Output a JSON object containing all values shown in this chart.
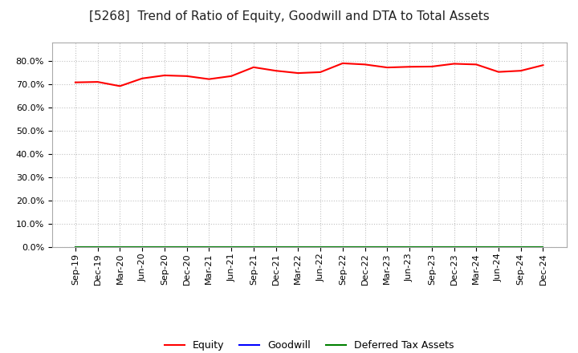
{
  "title": "[5268]  Trend of Ratio of Equity, Goodwill and DTA to Total Assets",
  "x_labels": [
    "Sep-19",
    "Dec-19",
    "Mar-20",
    "Jun-20",
    "Sep-20",
    "Dec-20",
    "Mar-21",
    "Jun-21",
    "Sep-21",
    "Dec-21",
    "Mar-22",
    "Jun-22",
    "Sep-22",
    "Dec-22",
    "Mar-23",
    "Jun-23",
    "Sep-23",
    "Dec-23",
    "Mar-24",
    "Jun-24",
    "Sep-24",
    "Dec-24"
  ],
  "equity": [
    70.8,
    71.0,
    69.2,
    72.5,
    73.8,
    73.5,
    72.2,
    73.5,
    77.3,
    75.8,
    74.8,
    75.2,
    79.0,
    78.5,
    77.2,
    77.5,
    77.6,
    78.8,
    78.5,
    75.3,
    75.8,
    78.2
  ],
  "goodwill": [
    0.0,
    0.0,
    0.0,
    0.0,
    0.0,
    0.0,
    0.0,
    0.0,
    0.0,
    0.0,
    0.0,
    0.0,
    0.0,
    0.0,
    0.0,
    0.0,
    0.0,
    0.0,
    0.0,
    0.0,
    0.0,
    0.0
  ],
  "dta": [
    0.0,
    0.0,
    0.0,
    0.0,
    0.0,
    0.0,
    0.0,
    0.0,
    0.0,
    0.0,
    0.0,
    0.0,
    0.0,
    0.0,
    0.0,
    0.0,
    0.0,
    0.0,
    0.0,
    0.0,
    0.0,
    0.0
  ],
  "equity_color": "#FF0000",
  "goodwill_color": "#0000FF",
  "dta_color": "#008000",
  "ylim_min": 0,
  "ylim_max": 88,
  "yticks": [
    0,
    10,
    20,
    30,
    40,
    50,
    60,
    70,
    80
  ],
  "background_color": "#FFFFFF",
  "plot_bg_color": "#FFFFFF",
  "grid_color": "#BBBBBB",
  "title_fontsize": 11,
  "tick_fontsize": 8,
  "legend_labels": [
    "Equity",
    "Goodwill",
    "Deferred Tax Assets"
  ]
}
